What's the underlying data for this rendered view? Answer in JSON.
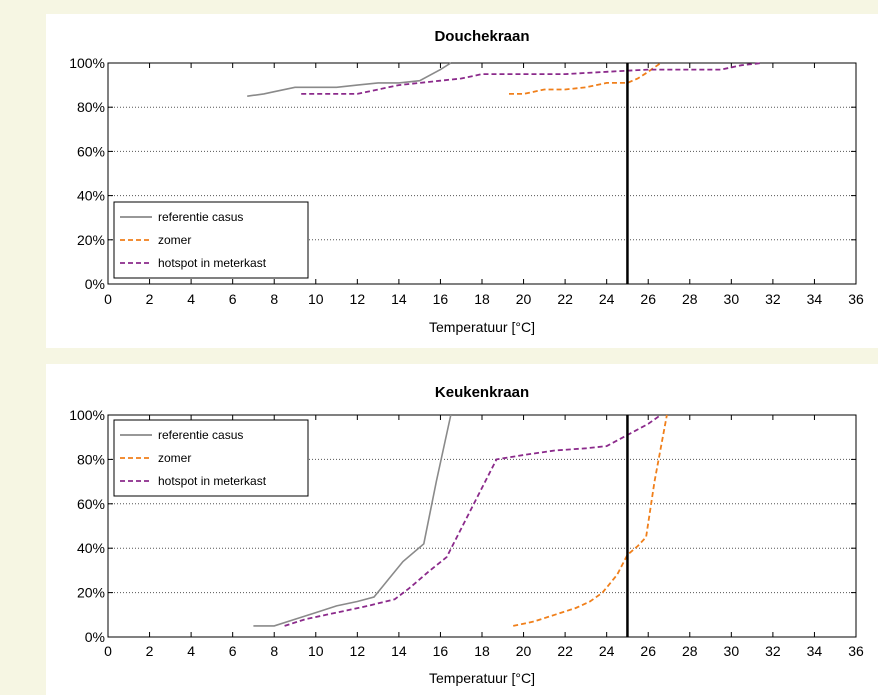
{
  "chart_data": [
    {
      "type": "line",
      "title": "Douchekraan",
      "xlabel": "Temperatuur [°C]",
      "ylabel": "",
      "xlim": [
        0,
        36
      ],
      "ylim": [
        0,
        100
      ],
      "xticks": [
        "0",
        "2",
        "4",
        "6",
        "8",
        "10",
        "12",
        "14",
        "16",
        "18",
        "20",
        "22",
        "24",
        "26",
        "28",
        "30",
        "32",
        "34",
        "36"
      ],
      "yticks": [
        "0%",
        "20%",
        "40%",
        "60%",
        "80%",
        "100%"
      ],
      "grid": "horizontal dotted",
      "reference_line_x": 25,
      "legend_position": "bottom-left",
      "series": [
        {
          "name": "referentie casus",
          "color": "#8a8a8a",
          "dash": "solid",
          "x": [
            6.7,
            7.5,
            8,
            9,
            10,
            11,
            12,
            13,
            14,
            15,
            16,
            16.5
          ],
          "y": [
            85,
            86,
            87,
            89,
            89,
            89,
            90,
            91,
            91,
            92,
            97,
            100
          ]
        },
        {
          "name": "zomer",
          "color": "#f07f1a",
          "dash": "dashed",
          "x": [
            19.3,
            20,
            21,
            22,
            23,
            24,
            25,
            25.5,
            26,
            26.6
          ],
          "y": [
            86,
            86,
            88,
            88,
            89,
            91,
            91,
            93,
            96,
            100
          ]
        },
        {
          "name": "hotspot in meterkast",
          "color": "#8b2a8b",
          "dash": "dashed",
          "x": [
            9.3,
            10,
            11,
            12,
            13,
            14,
            15,
            16,
            17,
            18,
            19,
            20,
            22,
            24,
            26,
            28,
            29.5,
            30.5,
            31.5
          ],
          "y": [
            86,
            86,
            86,
            86,
            88,
            90,
            91,
            92,
            93,
            95,
            95,
            95,
            95,
            96,
            97,
            97,
            97,
            99,
            100
          ]
        }
      ]
    },
    {
      "type": "line",
      "title": "Keukenkraan",
      "xlabel": "Temperatuur [°C]",
      "ylabel": "",
      "xlim": [
        0,
        36
      ],
      "ylim": [
        0,
        100
      ],
      "xticks": [
        "0",
        "2",
        "4",
        "6",
        "8",
        "10",
        "12",
        "14",
        "16",
        "18",
        "20",
        "22",
        "24",
        "26",
        "28",
        "30",
        "32",
        "34",
        "36"
      ],
      "yticks": [
        "0%",
        "20%",
        "40%",
        "60%",
        "80%",
        "100%"
      ],
      "grid": "horizontal dotted",
      "reference_line_x": 25,
      "legend_position": "top-left",
      "series": [
        {
          "name": "referentie casus",
          "color": "#8a8a8a",
          "dash": "solid",
          "x": [
            7,
            8,
            9,
            10,
            11,
            12,
            12.8,
            13.5,
            14.2,
            15.2,
            15.8,
            16.5
          ],
          "y": [
            5,
            5,
            8,
            11,
            14,
            16,
            18,
            26,
            34,
            42,
            70,
            100
          ]
        },
        {
          "name": "zomer",
          "color": "#f07f1a",
          "dash": "dashed",
          "x": [
            19.5,
            20.5,
            21.5,
            22.5,
            23.2,
            23.8,
            24.5,
            25,
            25.5,
            25.9,
            26.3,
            26.9
          ],
          "y": [
            5,
            7,
            10,
            13,
            16,
            20,
            28,
            37,
            41,
            45,
            70,
            100
          ]
        },
        {
          "name": "hotspot in meterkast",
          "color": "#8b2a8b",
          "dash": "dashed",
          "x": [
            8.5,
            9.5,
            10.5,
            11.5,
            12.5,
            13.8,
            14.5,
            15.5,
            16.3,
            17.5,
            18.7,
            20,
            21.5,
            23,
            24,
            25,
            26,
            26.6
          ],
          "y": [
            5,
            8,
            10,
            12,
            14,
            17,
            22,
            30,
            36,
            58,
            80,
            82,
            84,
            85,
            86,
            91,
            96,
            100
          ]
        }
      ]
    }
  ]
}
